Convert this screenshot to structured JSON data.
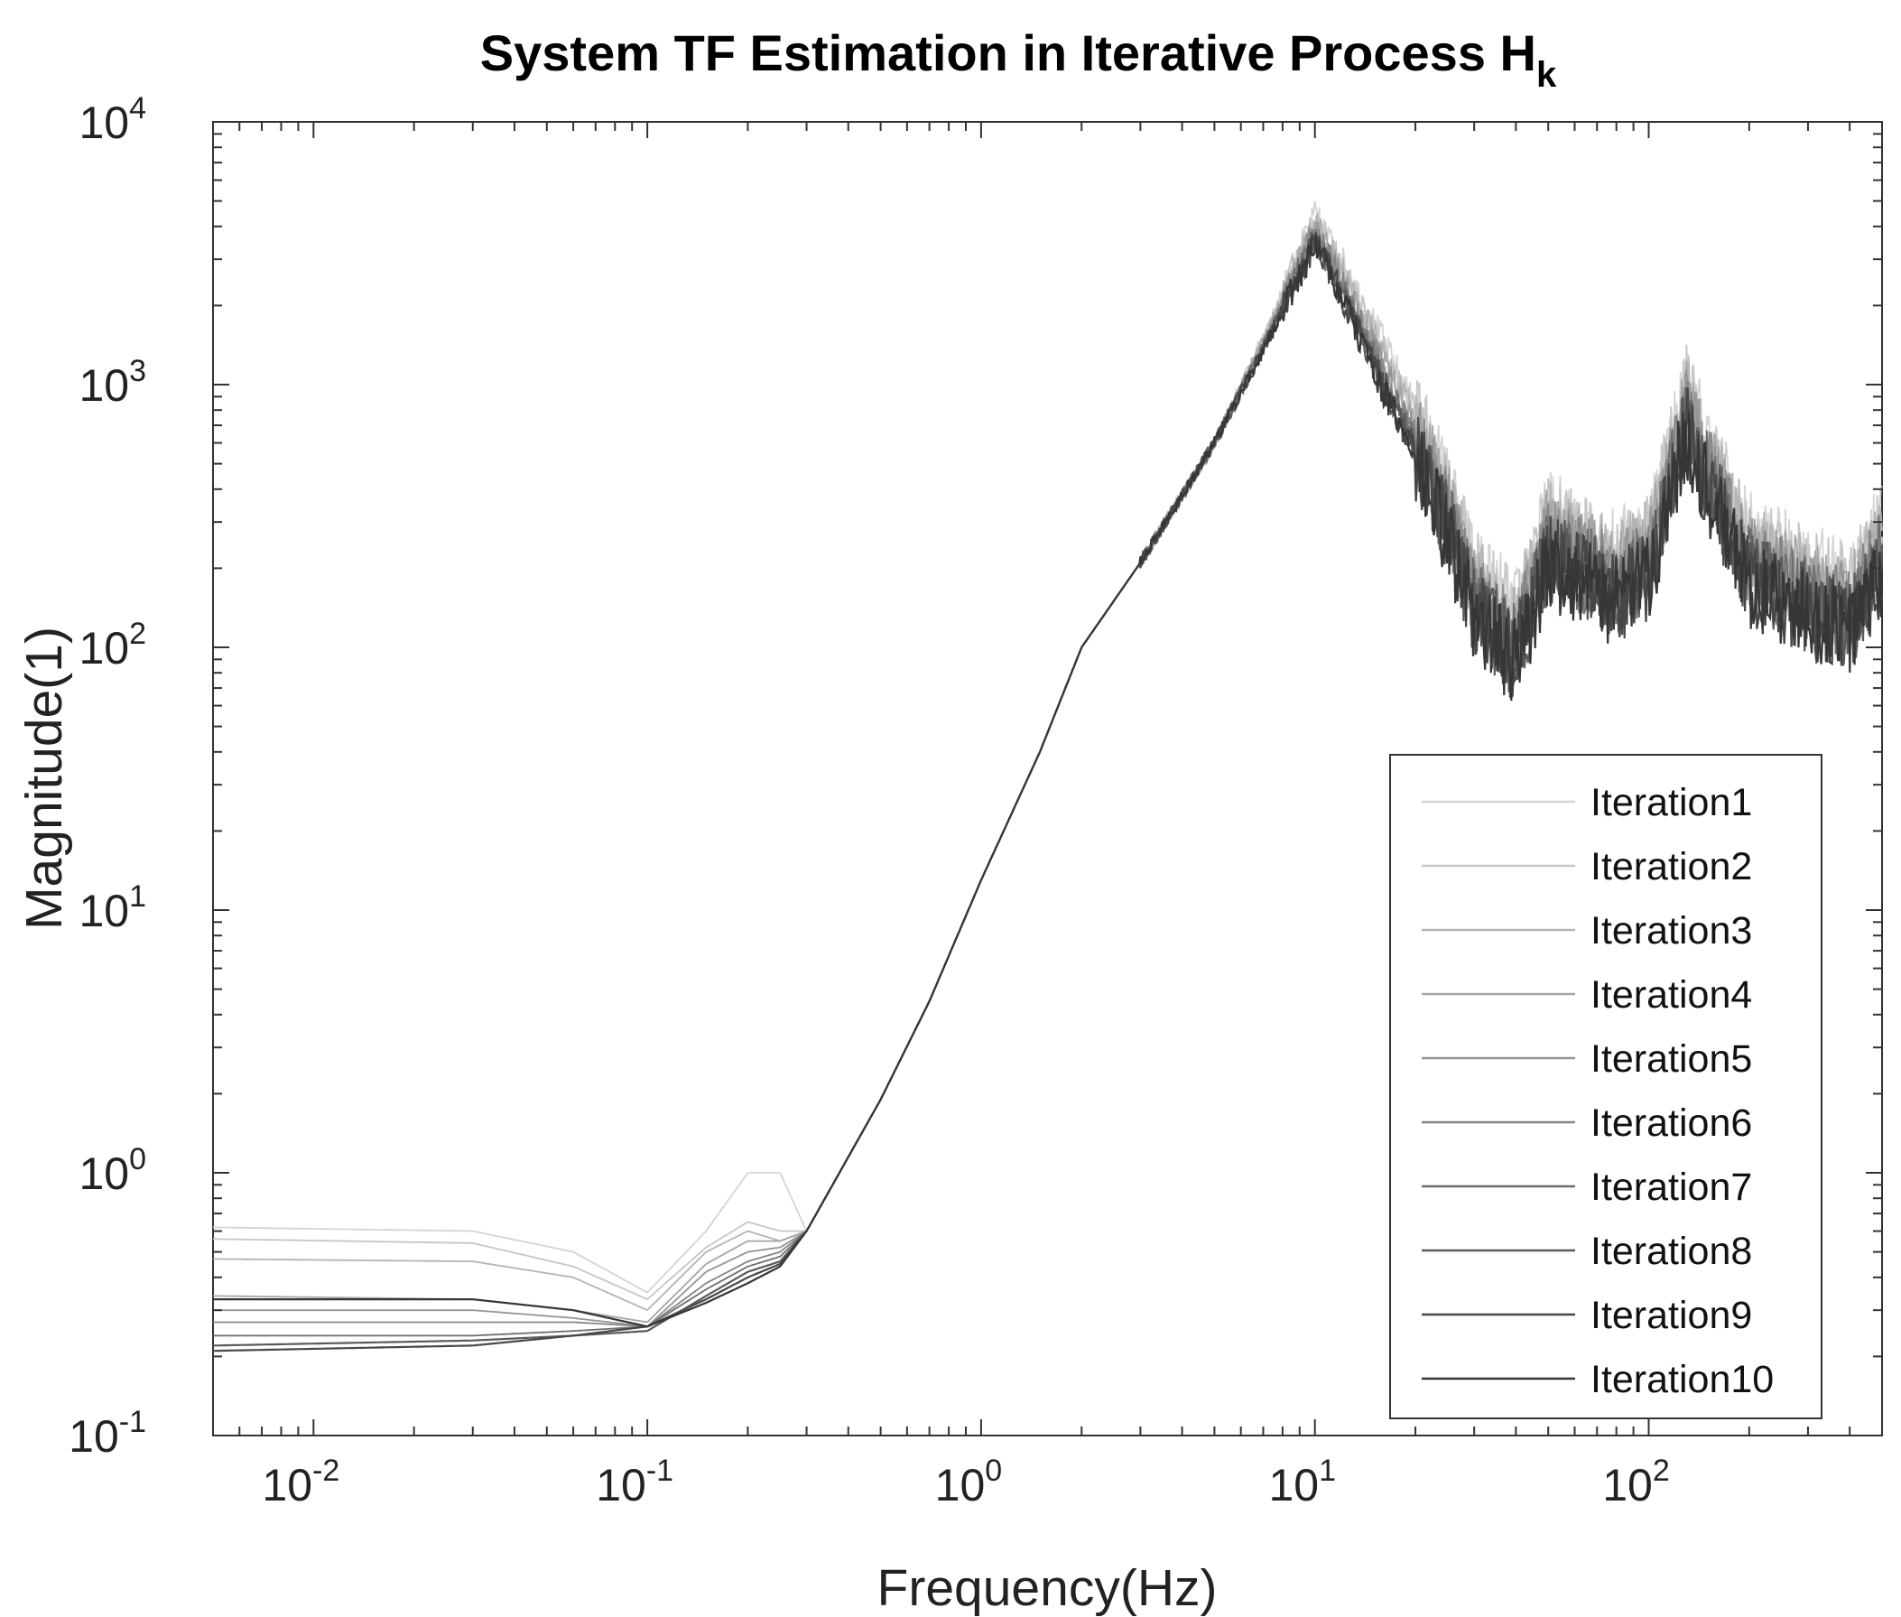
{
  "chart_data": {
    "type": "line",
    "title": "System TF Estimation in Iterative Process H",
    "title_subscript": "k",
    "xlabel": "Frequency(Hz)",
    "ylabel": "Magnitude(1)",
    "xscale": "log",
    "yscale": "log",
    "xlim": [
      0.005,
      500
    ],
    "ylim": [
      0.1,
      10000
    ],
    "x_ticks": [
      {
        "value": 0.01,
        "base": "10",
        "exp": "-2"
      },
      {
        "value": 0.1,
        "base": "10",
        "exp": "-1"
      },
      {
        "value": 1,
        "base": "10",
        "exp": "0"
      },
      {
        "value": 10,
        "base": "10",
        "exp": "1"
      },
      {
        "value": 100,
        "base": "10",
        "exp": "2"
      }
    ],
    "y_ticks": [
      {
        "value": 0.1,
        "base": "10",
        "exp": "-1"
      },
      {
        "value": 1,
        "base": "10",
        "exp": "0"
      },
      {
        "value": 10,
        "base": "10",
        "exp": "1"
      },
      {
        "value": 100,
        "base": "10",
        "exp": "2"
      },
      {
        "value": 1000,
        "base": "10",
        "exp": "3"
      },
      {
        "value": 10000,
        "base": "10",
        "exp": "4"
      }
    ],
    "legend_position": "bottom-right",
    "grid": false,
    "shared_points": {
      "x": [
        0.3,
        0.5,
        0.7,
        1,
        1.5,
        2,
        3,
        5,
        7,
        10,
        12,
        15,
        20,
        25,
        30,
        35,
        40,
        50,
        60,
        80,
        100,
        130,
        150,
        200,
        300,
        400,
        500
      ],
      "y": [
        0.6,
        1.9,
        4.5,
        13,
        40,
        100,
        210,
        600,
        1400,
        3700,
        2400,
        1300,
        600,
        300,
        150,
        120,
        100,
        240,
        210,
        170,
        210,
        750,
        450,
        200,
        150,
        130,
        220
      ]
    },
    "series": [
      {
        "name": "Iteration1",
        "color": "#d4d4d4",
        "low_freq": {
          "x": [
            0.005,
            0.03,
            0.06,
            0.1,
            0.15,
            0.2,
            0.25
          ],
          "y": [
            0.62,
            0.6,
            0.5,
            0.35,
            0.6,
            1.0,
            1.0
          ]
        },
        "scale": 1.35
      },
      {
        "name": "Iteration2",
        "color": "#c6c6c6",
        "low_freq": {
          "x": [
            0.005,
            0.03,
            0.06,
            0.1,
            0.15,
            0.2,
            0.25
          ],
          "y": [
            0.56,
            0.54,
            0.44,
            0.33,
            0.52,
            0.65,
            0.6
          ]
        },
        "scale": 1.28
      },
      {
        "name": "Iteration3",
        "color": "#b4b4b4",
        "low_freq": {
          "x": [
            0.005,
            0.03,
            0.06,
            0.1,
            0.15,
            0.2,
            0.25
          ],
          "y": [
            0.47,
            0.46,
            0.4,
            0.3,
            0.5,
            0.6,
            0.55
          ]
        },
        "scale": 1.2
      },
      {
        "name": "Iteration4",
        "color": "#a6a6a6",
        "low_freq": {
          "x": [
            0.005,
            0.03,
            0.06,
            0.1,
            0.15,
            0.2,
            0.25
          ],
          "y": [
            0.34,
            0.33,
            0.3,
            0.27,
            0.45,
            0.55,
            0.55
          ]
        },
        "scale": 1.13
      },
      {
        "name": "Iteration5",
        "color": "#959595",
        "low_freq": {
          "x": [
            0.005,
            0.03,
            0.06,
            0.1,
            0.15,
            0.2,
            0.25
          ],
          "y": [
            0.3,
            0.3,
            0.28,
            0.26,
            0.42,
            0.5,
            0.52
          ]
        },
        "scale": 1.08
      },
      {
        "name": "Iteration6",
        "color": "#858585",
        "low_freq": {
          "x": [
            0.005,
            0.03,
            0.06,
            0.1,
            0.15,
            0.2,
            0.25
          ],
          "y": [
            0.27,
            0.27,
            0.27,
            0.26,
            0.38,
            0.46,
            0.5
          ]
        },
        "scale": 1.03
      },
      {
        "name": "Iteration7",
        "color": "#6e6e6e",
        "low_freq": {
          "x": [
            0.005,
            0.03,
            0.06,
            0.1,
            0.15,
            0.2,
            0.25
          ],
          "y": [
            0.24,
            0.24,
            0.25,
            0.26,
            0.36,
            0.44,
            0.48
          ]
        },
        "scale": 0.98
      },
      {
        "name": "Iteration8",
        "color": "#5a5a5a",
        "low_freq": {
          "x": [
            0.005,
            0.03,
            0.06,
            0.1,
            0.15,
            0.2,
            0.25
          ],
          "y": [
            0.22,
            0.23,
            0.24,
            0.25,
            0.34,
            0.42,
            0.46
          ]
        },
        "scale": 0.94
      },
      {
        "name": "Iteration9",
        "color": "#474747",
        "low_freq": {
          "x": [
            0.005,
            0.03,
            0.06,
            0.1,
            0.15,
            0.2,
            0.25
          ],
          "y": [
            0.21,
            0.22,
            0.24,
            0.26,
            0.33,
            0.4,
            0.45
          ]
        },
        "scale": 0.9
      },
      {
        "name": "Iteration10",
        "color": "#363636",
        "low_freq": {
          "x": [
            0.005,
            0.03,
            0.06,
            0.1,
            0.15,
            0.2,
            0.25
          ],
          "y": [
            0.33,
            0.33,
            0.3,
            0.26,
            0.32,
            0.38,
            0.44
          ]
        },
        "scale": 0.87
      }
    ]
  }
}
